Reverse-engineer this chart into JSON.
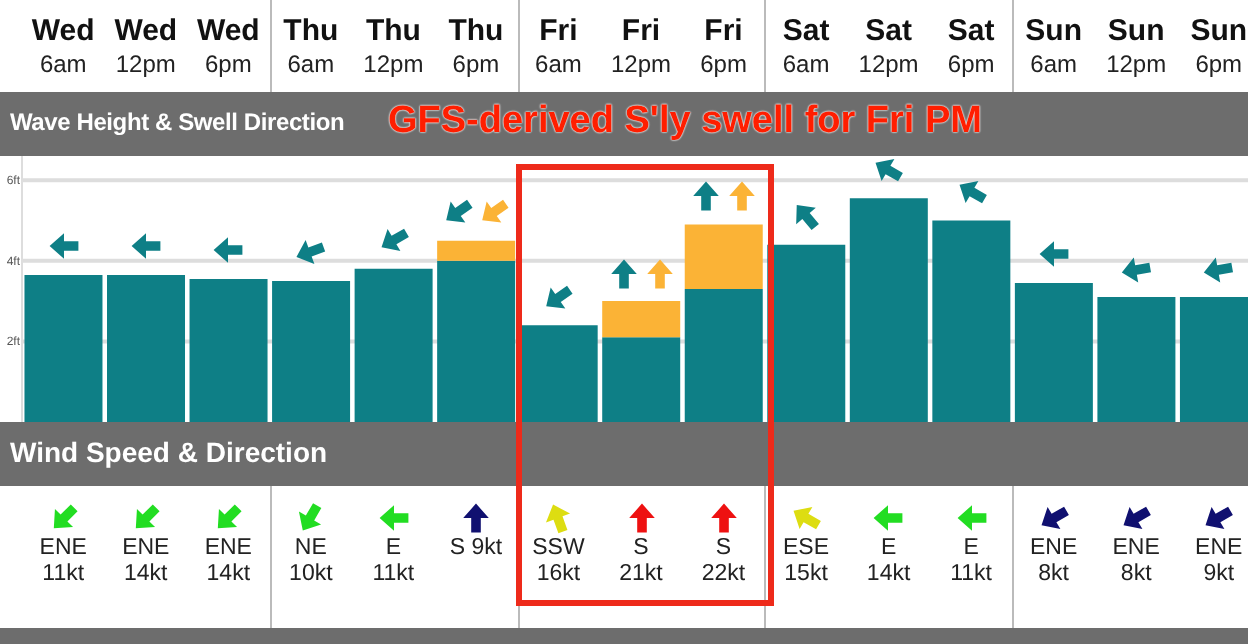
{
  "chart_data": {
    "type": "bar",
    "title": "Wave Height & Swell Direction",
    "categories": [
      "Wed 6am",
      "Wed 12pm",
      "Wed 6pm",
      "Thu 6am",
      "Thu 12pm",
      "Thu 6pm",
      "Fri 6am",
      "Fri 12pm",
      "Fri 6pm",
      "Sat 6am",
      "Sat 12pm",
      "Sat 6pm",
      "Sun 6am",
      "Sun 12pm",
      "Sun 6pm"
    ],
    "series": [
      {
        "color": "#0e7f86",
        "values": [
          3.65,
          3.65,
          3.55,
          3.5,
          3.8,
          4.0,
          2.4,
          2.1,
          3.3,
          4.4,
          5.55,
          5.0,
          3.45,
          3.1,
          3.1
        ]
      },
      {
        "color": "#fbb336",
        "values": [
          null,
          null,
          null,
          null,
          null,
          0.5,
          null,
          0.9,
          1.6,
          null,
          null,
          null,
          null,
          null,
          null
        ]
      }
    ],
    "stacked": true,
    "ylim": [
      0,
      6.6
    ],
    "yticks": [
      {
        "value": 2,
        "label": "2ft"
      },
      {
        "value": 4,
        "label": "4ft"
      },
      {
        "value": 6,
        "label": "6ft"
      }
    ],
    "grid": "y",
    "annotations": [
      "GFS-derived S'ly swell for Fri PM",
      "Wind Speed & Direction",
      "ENE 11kt",
      "ENE 14kt",
      "ENE 14kt",
      "NE 10kt",
      "E 11kt",
      "S 9kt",
      "SSW 16kt",
      "S 21kt",
      "S 22kt",
      "ESE 15kt",
      "E 14kt",
      "E 11kt",
      "ENE 8kt",
      "ENE 8kt",
      "ENE 9kt"
    ]
  }
}
